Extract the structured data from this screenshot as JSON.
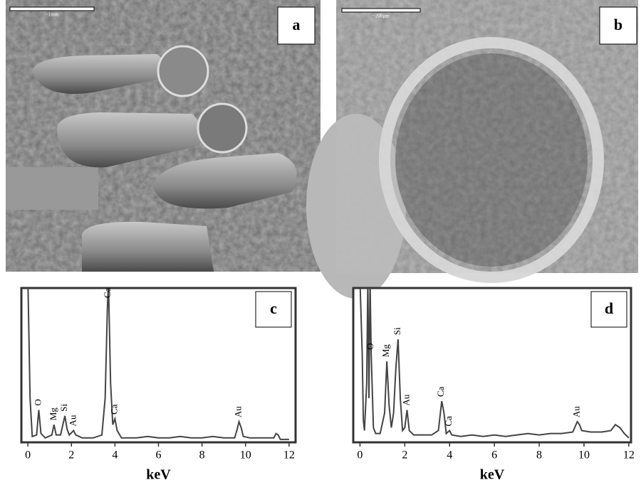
{
  "panels": [
    {
      "panel_label": "a",
      "scale_bar": "~1mm"
    },
    {
      "panel_label": "b",
      "scale_bar": "~200µm"
    }
  ],
  "chart_data": [
    {
      "type": "line",
      "panel_label": "c",
      "xlabel": "keV",
      "color": "#444444",
      "x": [
        0,
        0.1,
        0.2,
        0.4,
        0.5,
        0.6,
        0.8,
        1.1,
        1.2,
        1.3,
        1.5,
        1.7,
        1.8,
        1.9,
        2.1,
        2.2,
        2.5,
        3.0,
        3.4,
        3.55,
        3.65,
        3.7,
        3.8,
        3.9,
        4.0,
        4.1,
        4.3,
        5,
        5.5,
        6,
        6.5,
        7,
        7.5,
        8,
        8.5,
        9,
        9.5,
        9.6,
        9.7,
        9.8,
        9.9,
        10.2,
        10.8,
        11.3,
        11.4,
        11.5,
        11.6,
        12
      ],
      "values": [
        110,
        30,
        4,
        5,
        22,
        6,
        3,
        5,
        12,
        5,
        5,
        18,
        9,
        5,
        8,
        5,
        3,
        3,
        5,
        30,
        90,
        110,
        40,
        12,
        16,
        8,
        3,
        3,
        4,
        3,
        3,
        4,
        3,
        3,
        4,
        3,
        3,
        8,
        14,
        10,
        4,
        3,
        3,
        3,
        6,
        5,
        2,
        2
      ],
      "xlim": [
        -0.3,
        12.3
      ],
      "ylim": [
        0,
        100
      ],
      "xticks": [
        0,
        2,
        4,
        6,
        8,
        10,
        12
      ],
      "annotations": [
        {
          "text": "O",
          "x": 0.5
        },
        {
          "text": "Mg",
          "x": 1.2
        },
        {
          "text": "Si",
          "x": 1.7
        },
        {
          "text": "Au",
          "x": 2.1
        },
        {
          "text": "Ca",
          "x": 3.7
        },
        {
          "text": "Ca",
          "x": 4.0
        },
        {
          "text": "Au",
          "x": 9.7
        }
      ]
    },
    {
      "type": "line",
      "panel_label": "d",
      "xlabel": "keV",
      "color": "#444444",
      "x": [
        0,
        0.1,
        0.15,
        0.2,
        0.3,
        0.35,
        0.4,
        0.45,
        0.5,
        0.6,
        0.7,
        0.9,
        1.1,
        1.2,
        1.3,
        1.4,
        1.5,
        1.6,
        1.7,
        1.8,
        1.9,
        2.0,
        2.1,
        2.2,
        2.4,
        2.8,
        3.2,
        3.5,
        3.65,
        3.75,
        3.85,
        4.0,
        4.1,
        4.5,
        5,
        5.5,
        6,
        6.5,
        7,
        7.5,
        8,
        8.5,
        9,
        9.5,
        9.7,
        9.8,
        9.9,
        10.3,
        10.8,
        11.2,
        11.4,
        11.6,
        11.8,
        12
      ],
      "values": [
        110,
        60,
        15,
        8,
        40,
        110,
        30,
        110,
        60,
        10,
        6,
        6,
        20,
        55,
        25,
        10,
        20,
        50,
        70,
        30,
        8,
        10,
        22,
        8,
        5,
        5,
        5,
        8,
        28,
        20,
        6,
        8,
        5,
        4,
        5,
        4,
        5,
        4,
        5,
        6,
        5,
        6,
        6,
        7,
        14,
        12,
        8,
        7,
        7,
        8,
        12,
        10,
        6,
        3
      ],
      "xlim": [
        -0.3,
        12.1
      ],
      "ylim": [
        0,
        100
      ],
      "xticks": [
        0,
        2,
        4,
        6,
        8,
        10,
        12
      ],
      "annotations": [
        {
          "text": "O",
          "x": 0.5
        },
        {
          "text": "Mg",
          "x": 1.2
        },
        {
          "text": "Si",
          "x": 1.7
        },
        {
          "text": "Au",
          "x": 2.1
        },
        {
          "text": "Ca",
          "x": 3.65
        },
        {
          "text": "Ca",
          "x": 4.0
        },
        {
          "text": "Au",
          "x": 9.7
        }
      ]
    }
  ]
}
